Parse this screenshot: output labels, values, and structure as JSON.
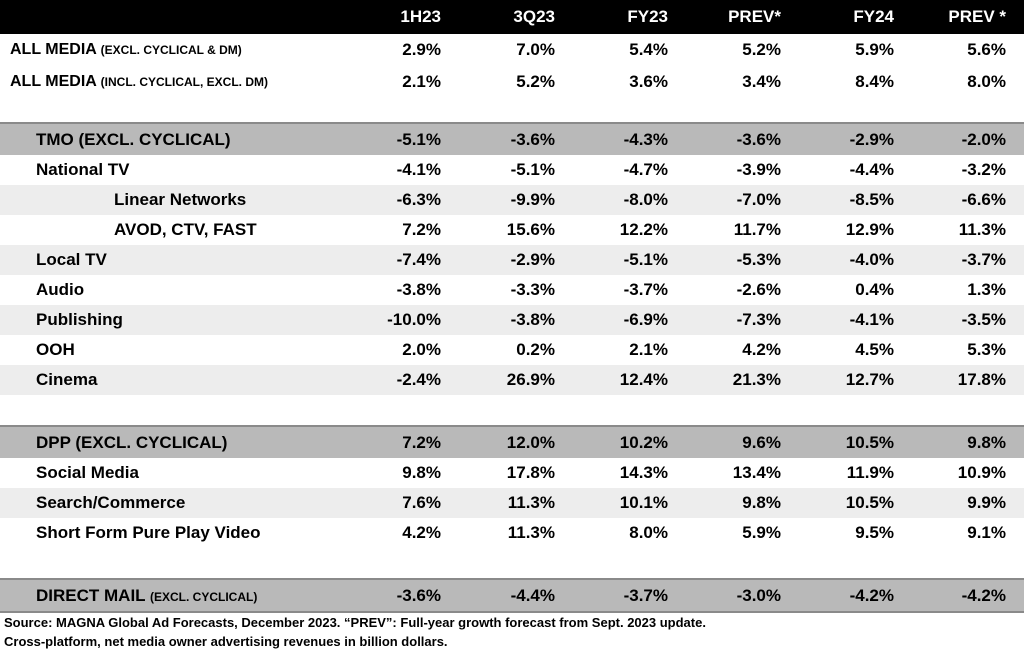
{
  "chart_data": {
    "type": "table",
    "columns": [
      "",
      "1H23",
      "3Q23",
      "FY23",
      "PREV*",
      "FY24",
      "PREV *"
    ],
    "rows": [
      {
        "label": "ALL MEDIA",
        "qualifier": "(EXCL. CYCLICAL & DM)",
        "values": [
          "2.9%",
          "7.0%",
          "5.4%",
          "5.2%",
          "5.9%",
          "5.6%"
        ]
      },
      {
        "label": "ALL MEDIA",
        "qualifier": "(INCL. CYCLICAL, EXCL. DM)",
        "values": [
          "2.1%",
          "5.2%",
          "3.6%",
          "3.4%",
          "8.4%",
          "8.0%"
        ]
      },
      {
        "label": "TMO (EXCL. CYCLICAL)",
        "values": [
          "-5.1%",
          "-3.6%",
          "-4.3%",
          "-3.6%",
          "-2.9%",
          "-2.0%"
        ]
      },
      {
        "label": "National TV",
        "values": [
          "-4.1%",
          "-5.1%",
          "-4.7%",
          "-3.9%",
          "-4.4%",
          "-3.2%"
        ]
      },
      {
        "label": "Linear Networks",
        "values": [
          "-6.3%",
          "-9.9%",
          "-8.0%",
          "-7.0%",
          "-8.5%",
          "-6.6%"
        ]
      },
      {
        "label": "AVOD, CTV, FAST",
        "values": [
          "7.2%",
          "15.6%",
          "12.2%",
          "11.7%",
          "12.9%",
          "11.3%"
        ]
      },
      {
        "label": "Local TV",
        "values": [
          "-7.4%",
          "-2.9%",
          "-5.1%",
          "-5.3%",
          "-4.0%",
          "-3.7%"
        ]
      },
      {
        "label": "Audio",
        "values": [
          "-3.8%",
          "-3.3%",
          "-3.7%",
          "-2.6%",
          "0.4%",
          "1.3%"
        ]
      },
      {
        "label": "Publishing",
        "values": [
          "-10.0%",
          "-3.8%",
          "-6.9%",
          "-7.3%",
          "-4.1%",
          "-3.5%"
        ]
      },
      {
        "label": "OOH",
        "values": [
          "2.0%",
          "0.2%",
          "2.1%",
          "4.2%",
          "4.5%",
          "5.3%"
        ]
      },
      {
        "label": "Cinema",
        "values": [
          "-2.4%",
          "26.9%",
          "12.4%",
          "21.3%",
          "12.7%",
          "17.8%"
        ]
      },
      {
        "label": "DPP (EXCL. CYCLICAL)",
        "values": [
          "7.2%",
          "12.0%",
          "10.2%",
          "9.6%",
          "10.5%",
          "9.8%"
        ]
      },
      {
        "label": "Social Media",
        "values": [
          "9.8%",
          "17.8%",
          "14.3%",
          "13.4%",
          "11.9%",
          "10.9%"
        ]
      },
      {
        "label": "Search/Commerce",
        "values": [
          "7.6%",
          "11.3%",
          "10.1%",
          "9.8%",
          "10.5%",
          "9.9%"
        ]
      },
      {
        "label": "Short Form Pure Play Video",
        "values": [
          "4.2%",
          "11.3%",
          "8.0%",
          "5.9%",
          "9.5%",
          "9.1%"
        ]
      },
      {
        "label": "DIRECT MAIL",
        "qualifier": "(EXCL. CYCLICAL)",
        "values": [
          "-3.6%",
          "-4.4%",
          "-3.7%",
          "-3.0%",
          "-4.2%",
          "-4.2%"
        ]
      }
    ]
  },
  "footer": {
    "line1": "Source: MAGNA Global Ad Forecasts, December 2023. “PREV”: Full-year growth forecast from Sept. 2023 update.",
    "line2": "Cross-platform, net media owner advertising revenues in billion dollars."
  }
}
